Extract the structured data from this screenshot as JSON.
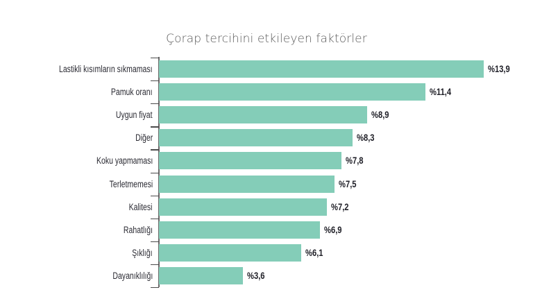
{
  "chart_data": {
    "type": "bar",
    "orientation": "horizontal",
    "title": "Çorap tercihini etkileyen faktörler",
    "xlabel": "",
    "ylabel": "",
    "categories": [
      "Lastikli kısımların sıkmaması",
      "Pamuk oranı",
      "Uygun fiyat",
      "Diğer",
      "Koku yapmaması",
      "Terletmemesi",
      "Kalitesi",
      "Rahatlığı",
      "Şıklığı",
      "Dayanıklılığı"
    ],
    "values": [
      13.9,
      11.4,
      8.9,
      8.3,
      7.8,
      7.5,
      7.2,
      6.9,
      6.1,
      3.6
    ],
    "value_labels": [
      "%13,9",
      "%11,4",
      "%8,9",
      "%8,3",
      "%7,8",
      "%7,5",
      "%7,2",
      "%6,9",
      "%6,1",
      "%3,6"
    ],
    "unit": "%",
    "grid": false,
    "legend": null,
    "bar_color": "#84cdb8"
  },
  "title": "Çorap tercihini etkileyen faktörler"
}
